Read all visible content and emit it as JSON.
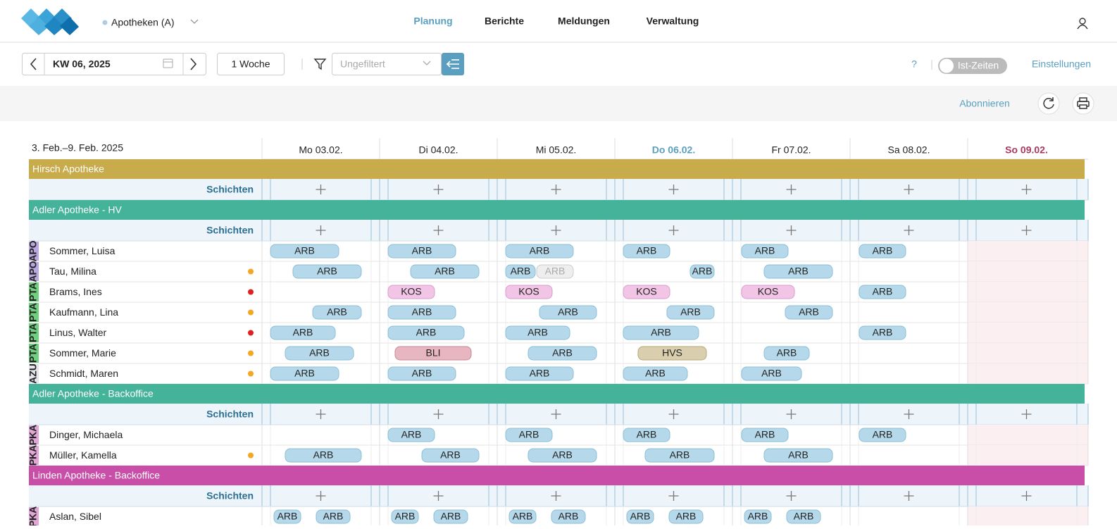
{
  "header": {
    "location": "Apotheken (A)",
    "nav": [
      "Planung",
      "Berichte",
      "Meldungen",
      "Verwaltung"
    ]
  },
  "toolbar": {
    "week": "KW 06, 2025",
    "period": "1 Woche",
    "filter": "Ungefiltert",
    "help": "?",
    "toggle": "Ist-Zeiten",
    "settings": "Einstellungen"
  },
  "subbar": {
    "subscribe": "Abonnieren"
  },
  "schedule": {
    "range": "3. Feb.–9. Feb. 2025",
    "days": [
      "Mo 03.02.",
      "Di 04.02.",
      "Mi 05.02.",
      "Do 06.02.",
      "Fr 07.02.",
      "Sa 08.02.",
      "So 09.02."
    ],
    "groups": [
      {
        "name": "Hirsch Apotheke",
        "color": "#c8ab4b",
        "add_row": "Schichten",
        "employees": []
      },
      {
        "name": "Adler Apotheke - HV",
        "color": "#45b39a",
        "add_row": "Schichten",
        "employees": [
          {
            "role": "APO",
            "name": "Sommer, Luisa",
            "shifts": [
              [
                "ARB"
              ],
              [
                "ARB"
              ],
              [
                "ARB"
              ],
              [
                "ARB"
              ],
              [
                "ARB"
              ],
              [
                "ARB"
              ],
              []
            ]
          },
          {
            "role": "APO",
            "name": "Tau, Milina",
            "dot": "#f5a623",
            "shifts": [
              [
                "ARB"
              ],
              [
                "ARB"
              ],
              [
                "ARB",
                {
                  "label": "ARB",
                  "disabled": true
                }
              ],
              [
                "ARB"
              ],
              [
                "ARB"
              ],
              [],
              []
            ]
          },
          {
            "role": "PTA",
            "name": "Brams, Ines",
            "dot": "#e02020",
            "shifts": [
              [],
              [
                "KOS"
              ],
              [
                "KOS"
              ],
              [
                "KOS"
              ],
              [
                "KOS"
              ],
              [
                "ARB"
              ],
              []
            ]
          },
          {
            "role": "PTA",
            "name": "Kaufmann, Lina",
            "dot": "#f5a623",
            "shifts": [
              [
                "ARB"
              ],
              [
                "ARB"
              ],
              [
                "ARB"
              ],
              [
                "ARB"
              ],
              [
                "ARB"
              ],
              [],
              []
            ]
          },
          {
            "role": "PTA",
            "name": "Linus, Walter",
            "dot": "#e02020",
            "shifts": [
              [
                "ARB"
              ],
              [
                "ARB"
              ],
              [
                "ARB"
              ],
              [
                "ARB"
              ],
              [],
              [
                "ARB"
              ],
              []
            ]
          },
          {
            "role": "PTA",
            "name": "Sommer, Marie",
            "dot": "#f5a623",
            "shifts": [
              [
                "ARB"
              ],
              [
                "BLI"
              ],
              [
                "ARB"
              ],
              [
                "HVS"
              ],
              [
                "ARB"
              ],
              [],
              []
            ]
          },
          {
            "role": "AZU",
            "name": "Schmidt, Maren",
            "dot": "#f5a623",
            "shifts": [
              [
                "ARB"
              ],
              [
                "ARB"
              ],
              [
                "ARB"
              ],
              [
                "ARB"
              ],
              [
                "ARB"
              ],
              [],
              []
            ]
          }
        ]
      },
      {
        "name": "Adler Apotheke - Backoffice",
        "color": "#45b39a",
        "add_row": "Schichten",
        "employees": [
          {
            "role": "PKA",
            "name": "Dinger, Michaela",
            "shifts": [
              [],
              [
                "ARB"
              ],
              [
                "ARB"
              ],
              [
                "ARB"
              ],
              [
                "ARB"
              ],
              [
                "ARB"
              ],
              []
            ]
          },
          {
            "role": "PKA",
            "name": "Müller, Kamella",
            "dot": "#f5a623",
            "shifts": [
              [
                "ARB"
              ],
              [
                "ARB"
              ],
              [
                "ARB"
              ],
              [
                "ARB"
              ],
              [
                "ARB"
              ],
              [],
              []
            ]
          }
        ]
      },
      {
        "name": "Linden Apotheke - Backoffice",
        "color": "#c84ea8",
        "add_row": "Schichten",
        "employees": [
          {
            "role": "PKA",
            "name": "Aslan, Sibel",
            "shifts": [
              [
                "ARB",
                "ARB"
              ],
              [
                "ARB",
                "ARB"
              ],
              [
                "ARB",
                "ARB"
              ],
              [
                "ARB",
                "ARB"
              ],
              [
                "ARB",
                "ARB"
              ],
              [],
              []
            ]
          }
        ]
      }
    ]
  }
}
